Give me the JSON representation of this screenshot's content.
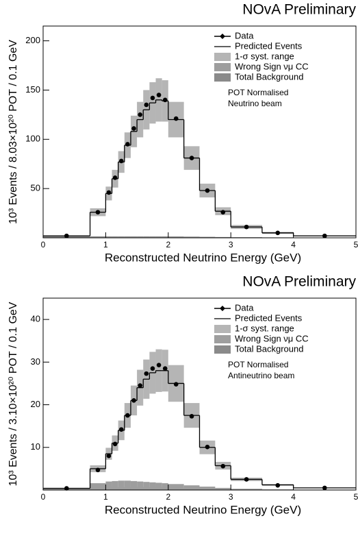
{
  "chart_data": [
    {
      "type": "histogram",
      "title": "NOvA Preliminary",
      "x_label": "Reconstructed Neutrino Energy (GeV)",
      "y_label": "10³ Events / 8.03×10²⁰ POT / 0.1 GeV",
      "bins": [
        0,
        0.75,
        1.0,
        1.1,
        1.2,
        1.3,
        1.4,
        1.5,
        1.6,
        1.7,
        1.8,
        1.9,
        2.0,
        2.25,
        2.5,
        2.75,
        3.0,
        3.5,
        4.0,
        5.0
      ],
      "series": [
        {
          "name": "Data",
          "style": "points",
          "color": "#000000",
          "values": [
            2,
            26,
            46,
            61,
            78,
            95,
            111,
            125,
            135,
            142,
            145,
            140,
            121,
            81,
            48,
            26,
            11,
            5,
            2
          ]
        },
        {
          "name": "Predicted Events",
          "style": "step",
          "color": "#000000",
          "values": [
            2,
            26,
            45,
            60,
            77,
            94,
            108,
            120,
            130,
            137,
            140,
            139,
            120,
            81,
            48,
            27,
            11,
            5,
            2
          ]
        },
        {
          "name": "1-σ syst. range",
          "style": "band",
          "color": "#b5b5b5",
          "values": [
            0.5,
            4,
            7,
            9,
            11,
            13,
            16,
            18,
            20,
            21,
            22,
            21,
            18,
            12,
            7,
            4,
            2,
            1,
            0.5
          ]
        },
        {
          "name": "Wrong Sign νμ CC",
          "style": "fill",
          "color": "#9e9e9e",
          "values": [
            0.3,
            0.8,
            1,
            1,
            1,
            1,
            1,
            1,
            1,
            1,
            1,
            1,
            0.8,
            0.6,
            0.4,
            0.3,
            0.2,
            0.1,
            0.1
          ]
        },
        {
          "name": "Total Background",
          "style": "fill",
          "color": "#8a8a8a",
          "values": [
            1.5,
            1.5,
            1.5,
            1.5,
            1.5,
            1.5,
            1.5,
            1.5,
            1.5,
            1.5,
            1.5,
            1.5,
            1.4,
            1.2,
            1,
            0.8,
            0.6,
            0.4,
            0.3
          ]
        }
      ],
      "annotations": [
        "POT Normalised",
        "Neutrino beam"
      ],
      "xlim": [
        0,
        5
      ],
      "xticks": [
        0,
        1,
        2,
        3,
        4,
        5
      ],
      "ylim": [
        0,
        215
      ],
      "yticks": [
        50,
        100,
        150,
        200
      ],
      "legend": "top-right"
    },
    {
      "type": "histogram",
      "title": "NOvA Preliminary",
      "x_label": "Reconstructed Neutrino Energy (GeV)",
      "y_label": "10³ Events / 3.10×10²⁰ POT / 0.1 GeV",
      "bins": [
        0,
        0.75,
        1.0,
        1.1,
        1.2,
        1.3,
        1.4,
        1.5,
        1.6,
        1.7,
        1.8,
        1.9,
        2.0,
        2.25,
        2.5,
        2.75,
        3.0,
        3.5,
        4.0,
        5.0
      ],
      "series": [
        {
          "name": "Data",
          "style": "points",
          "color": "#000000",
          "values": [
            0.4,
            4.7,
            8.0,
            10.8,
            14.2,
            17.5,
            21.0,
            24.5,
            27.3,
            28.5,
            29.3,
            28.5,
            24.8,
            17.3,
            10.1,
            5.6,
            2.5,
            1.1,
            0.5
          ]
        },
        {
          "name": "Predicted Events",
          "style": "step",
          "color": "#000000",
          "values": [
            0.4,
            5,
            8.5,
            11,
            14,
            17.5,
            21,
            24,
            26,
            27.5,
            28,
            28,
            25,
            17.5,
            10,
            5.7,
            2.5,
            1.2,
            0.5
          ]
        },
        {
          "name": "1-σ syst. range",
          "style": "band",
          "color": "#b5b5b5",
          "values": [
            0.1,
            0.8,
            1.4,
            1.8,
            2.3,
            2.9,
            3.5,
            4.2,
            4.6,
            4.9,
            5,
            4.9,
            4.3,
            2.9,
            1.6,
            0.9,
            0.4,
            0.2,
            0.1
          ]
        },
        {
          "name": "Wrong Sign νμ CC",
          "style": "fill",
          "color": "#9e9e9e",
          "values": [
            0.2,
            1.6,
            2,
            2.1,
            2.2,
            2.2,
            2.1,
            2.0,
            1.9,
            1.8,
            1.7,
            1.6,
            1.4,
            1.1,
            0.8,
            0.5,
            0.3,
            0.15,
            0.05
          ]
        },
        {
          "name": "Total Background",
          "style": "fill",
          "color": "#8a8a8a",
          "values": [
            0.3,
            0.6,
            0.7,
            0.7,
            0.7,
            0.7,
            0.7,
            0.7,
            0.7,
            0.7,
            0.7,
            0.7,
            0.6,
            0.5,
            0.4,
            0.3,
            0.2,
            0.1,
            0.1
          ]
        }
      ],
      "annotations": [
        "POT Normalised",
        "Antineutrino beam"
      ],
      "xlim": [
        0,
        5
      ],
      "xticks": [
        0,
        1,
        2,
        3,
        4,
        5
      ],
      "ylim": [
        0,
        45
      ],
      "yticks": [
        10,
        20,
        30,
        40
      ],
      "legend": "top-right"
    }
  ]
}
